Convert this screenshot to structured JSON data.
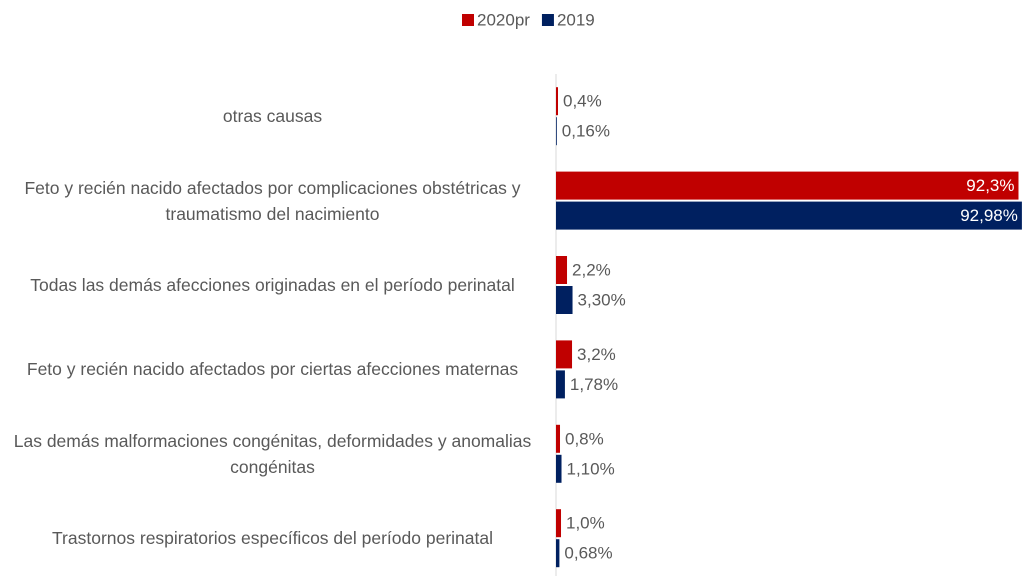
{
  "chart_data": {
    "type": "hbar",
    "categories": [
      "otras causas",
      "Feto y recién nacido afectados por complicaciones obstétricas y traumatismo del nacimiento",
      "Todas las demás afecciones originadas en el período perinatal",
      "Feto y recién nacido afectados por ciertas afecciones maternas",
      "Las demás malformaciones congénitas, deformidades y anomalias congénitas",
      "Trastornos respiratorios específicos del período perinatal"
    ],
    "series": [
      {
        "name": "2020pr",
        "color": "#c00000",
        "values": [
          0.4,
          92.3,
          2.2,
          3.2,
          0.8,
          1.0
        ],
        "value_labels": [
          "0,4%",
          "92,3%",
          "2,2%",
          "3,2%",
          "0,8%",
          "1,0%"
        ]
      },
      {
        "name": "2019",
        "color": "#002060",
        "values": [
          0.16,
          92.98,
          3.3,
          1.78,
          1.1,
          0.68
        ],
        "value_labels": [
          "0,16%",
          "92,98%",
          "3,30%",
          "1,78%",
          "1,10%",
          "0,68%"
        ]
      }
    ],
    "xlim": [
      0,
      93
    ],
    "legend": "top"
  }
}
